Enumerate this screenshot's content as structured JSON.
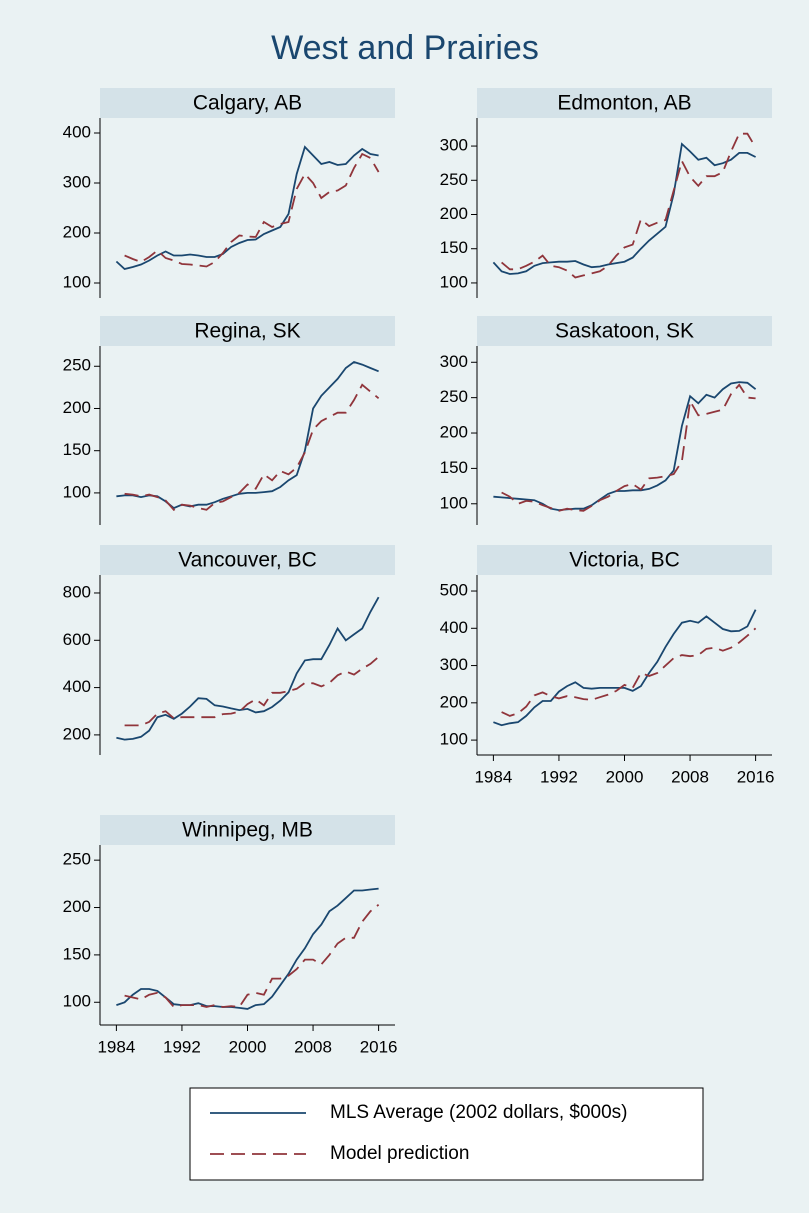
{
  "title": "West and Prairies",
  "chart_data": [
    {
      "type": "line",
      "title": "Calgary, AB",
      "x": [
        1984,
        1985,
        1986,
        1987,
        1988,
        1989,
        1990,
        1991,
        1992,
        1993,
        1994,
        1995,
        1996,
        1997,
        1998,
        1999,
        2000,
        2001,
        2002,
        2003,
        2004,
        2005,
        2006,
        2007,
        2008,
        2009,
        2010,
        2011,
        2012,
        2013,
        2014,
        2015,
        2016
      ],
      "xlim": [
        1982,
        2018
      ],
      "ylim": [
        70,
        430
      ],
      "yticks": [
        100,
        200,
        300,
        400
      ],
      "series": [
        {
          "name": "MLS Average (2002 dollars, $000s)",
          "color": "#1a476f",
          "style": "solid",
          "values": [
            143,
            128,
            132,
            137,
            145,
            155,
            163,
            155,
            155,
            157,
            155,
            152,
            152,
            158,
            172,
            180,
            186,
            187,
            198,
            205,
            212,
            238,
            318,
            372,
            355,
            338,
            342,
            336,
            338,
            355,
            368,
            358,
            355
          ]
        },
        {
          "name": "Model prediction",
          "color": "#90353b",
          "style": "dashed",
          "values": [
            null,
            155,
            148,
            142,
            152,
            165,
            150,
            145,
            138,
            137,
            135,
            133,
            142,
            160,
            182,
            195,
            193,
            192,
            222,
            212,
            218,
            222,
            288,
            318,
            300,
            270,
            282,
            285,
            295,
            330,
            358,
            350,
            322
          ]
        }
      ]
    },
    {
      "type": "line",
      "title": "Edmonton, AB",
      "x": [
        1984,
        1985,
        1986,
        1987,
        1988,
        1989,
        1990,
        1991,
        1992,
        1993,
        1994,
        1995,
        1996,
        1997,
        1998,
        1999,
        2000,
        2001,
        2002,
        2003,
        2004,
        2005,
        2006,
        2007,
        2008,
        2009,
        2010,
        2011,
        2012,
        2013,
        2014,
        2015,
        2016
      ],
      "xlim": [
        1982,
        2018
      ],
      "ylim": [
        78,
        341
      ],
      "yticks": [
        100,
        150,
        200,
        250,
        300
      ],
      "series": [
        {
          "name": "MLS Average (2002 dollars, $000s)",
          "color": "#1a476f",
          "style": "solid",
          "values": [
            130,
            117,
            113,
            114,
            117,
            125,
            129,
            130,
            131,
            131,
            132,
            127,
            123,
            124,
            127,
            129,
            131,
            137,
            150,
            162,
            172,
            182,
            230,
            303,
            292,
            280,
            283,
            272,
            275,
            280,
            290,
            290,
            284
          ]
        },
        {
          "name": "Model prediction",
          "color": "#90353b",
          "style": "dashed",
          "values": [
            null,
            130,
            120,
            120,
            125,
            131,
            140,
            125,
            123,
            118,
            108,
            111,
            114,
            117,
            125,
            140,
            152,
            156,
            193,
            183,
            188,
            192,
            235,
            278,
            255,
            242,
            256,
            256,
            262,
            292,
            318,
            318,
            298
          ]
        }
      ]
    },
    {
      "type": "line",
      "title": "Regina, SK",
      "x": [
        1984,
        1985,
        1986,
        1987,
        1988,
        1989,
        1990,
        1991,
        1992,
        1993,
        1994,
        1995,
        1996,
        1997,
        1998,
        1999,
        2000,
        2001,
        2002,
        2003,
        2004,
        2005,
        2006,
        2007,
        2008,
        2009,
        2010,
        2011,
        2012,
        2013,
        2014,
        2015,
        2016
      ],
      "xlim": [
        1982,
        2018
      ],
      "ylim": [
        62,
        274
      ],
      "yticks": [
        100,
        150,
        200,
        250
      ],
      "series": [
        {
          "name": "MLS Average (2002 dollars, $000s)",
          "color": "#1a476f",
          "style": "solid",
          "values": [
            96,
            97,
            97,
            95,
            97,
            96,
            90,
            82,
            86,
            84,
            86,
            86,
            89,
            93,
            96,
            99,
            100,
            100,
            101,
            102,
            107,
            115,
            121,
            150,
            200,
            215,
            225,
            235,
            248,
            255,
            252,
            248,
            244
          ]
        },
        {
          "name": "Model prediction",
          "color": "#90353b",
          "style": "dashed",
          "values": [
            null,
            99,
            98,
            96,
            98,
            95,
            91,
            80,
            86,
            85,
            82,
            80,
            88,
            90,
            95,
            100,
            110,
            105,
            122,
            115,
            126,
            122,
            130,
            148,
            175,
            185,
            190,
            195,
            195,
            210,
            228,
            220,
            212
          ]
        }
      ]
    },
    {
      "type": "line",
      "title": "Saskatoon, SK",
      "x": [
        1984,
        1985,
        1986,
        1987,
        1988,
        1989,
        1990,
        1991,
        1992,
        1993,
        1994,
        1995,
        1996,
        1997,
        1998,
        1999,
        2000,
        2001,
        2002,
        2003,
        2004,
        2005,
        2006,
        2007,
        2008,
        2009,
        2010,
        2011,
        2012,
        2013,
        2014,
        2015,
        2016
      ],
      "xlim": [
        1982,
        2018
      ],
      "ylim": [
        70,
        323
      ],
      "yticks": [
        100,
        150,
        200,
        250,
        300
      ],
      "series": [
        {
          "name": "MLS Average (2002 dollars, $000s)",
          "color": "#1a476f",
          "style": "solid",
          "values": [
            110,
            109,
            108,
            107,
            106,
            105,
            100,
            93,
            91,
            92,
            93,
            93,
            98,
            106,
            114,
            118,
            118,
            119,
            119,
            121,
            126,
            133,
            147,
            210,
            252,
            242,
            254,
            250,
            262,
            270,
            272,
            271,
            262
          ]
        },
        {
          "name": "Model prediction",
          "color": "#90353b",
          "style": "dashed",
          "values": [
            null,
            116,
            110,
            100,
            104,
            103,
            98,
            94,
            90,
            93,
            91,
            90,
            97,
            105,
            110,
            118,
            125,
            128,
            120,
            136,
            137,
            139,
            142,
            160,
            245,
            225,
            227,
            230,
            233,
            255,
            268,
            250,
            249
          ]
        }
      ]
    },
    {
      "type": "line",
      "title": "Vancouver, BC",
      "x": [
        1984,
        1985,
        1986,
        1987,
        1988,
        1989,
        1990,
        1991,
        1992,
        1993,
        1994,
        1995,
        1996,
        1997,
        1998,
        1999,
        2000,
        2001,
        2002,
        2003,
        2004,
        2005,
        2006,
        2007,
        2008,
        2009,
        2010,
        2011,
        2012,
        2013,
        2014,
        2015,
        2016
      ],
      "xlim": [
        1982,
        2018
      ],
      "ylim": [
        115,
        876
      ],
      "yticks": [
        200,
        400,
        600,
        800
      ],
      "series": [
        {
          "name": "MLS Average (2002 dollars, $000s)",
          "color": "#1a476f",
          "style": "solid",
          "values": [
            188,
            180,
            183,
            192,
            218,
            275,
            285,
            268,
            290,
            320,
            355,
            352,
            325,
            320,
            312,
            305,
            310,
            295,
            300,
            318,
            345,
            380,
            460,
            515,
            520,
            520,
            580,
            650,
            600,
            625,
            650,
            720,
            782
          ]
        },
        {
          "name": "Model prediction",
          "color": "#90353b",
          "style": "dashed",
          "values": [
            null,
            240,
            240,
            240,
            255,
            290,
            300,
            270,
            275,
            275,
            275,
            275,
            275,
            288,
            290,
            298,
            330,
            350,
            325,
            378,
            378,
            385,
            395,
            420,
            418,
            405,
            420,
            452,
            468,
            455,
            480,
            500,
            530
          ]
        }
      ]
    },
    {
      "type": "line",
      "title": "Victoria, BC",
      "x": [
        1984,
        1985,
        1986,
        1987,
        1988,
        1989,
        1990,
        1991,
        1992,
        1993,
        1994,
        1995,
        1996,
        1997,
        1998,
        1999,
        2000,
        2001,
        2002,
        2003,
        2004,
        2005,
        2006,
        2007,
        2008,
        2009,
        2010,
        2011,
        2012,
        2013,
        2014,
        2015,
        2016
      ],
      "xlim": [
        1982,
        2018
      ],
      "xticks": [
        1984,
        1992,
        2000,
        2008,
        2016
      ],
      "ylim": [
        60,
        543
      ],
      "yticks": [
        100,
        200,
        300,
        400,
        500
      ],
      "series": [
        {
          "name": "MLS Average (2002 dollars, $000s)",
          "color": "#1a476f",
          "style": "solid",
          "values": [
            148,
            140,
            145,
            148,
            165,
            188,
            205,
            205,
            230,
            245,
            255,
            240,
            238,
            240,
            240,
            240,
            240,
            232,
            245,
            280,
            310,
            350,
            385,
            415,
            420,
            415,
            432,
            415,
            398,
            392,
            393,
            405,
            450
          ]
        },
        {
          "name": "Model prediction",
          "color": "#90353b",
          "style": "dashed",
          "values": [
            null,
            175,
            165,
            172,
            190,
            220,
            228,
            218,
            212,
            218,
            215,
            210,
            208,
            215,
            222,
            232,
            248,
            240,
            280,
            272,
            280,
            300,
            320,
            328,
            325,
            328,
            345,
            348,
            340,
            348,
            362,
            380,
            400
          ]
        }
      ]
    },
    {
      "type": "line",
      "title": "Winnipeg, MB",
      "x": [
        1984,
        1985,
        1986,
        1987,
        1988,
        1989,
        1990,
        1991,
        1992,
        1993,
        1994,
        1995,
        1996,
        1997,
        1998,
        1999,
        2000,
        2001,
        2002,
        2003,
        2004,
        2005,
        2006,
        2007,
        2008,
        2009,
        2010,
        2011,
        2012,
        2013,
        2014,
        2015,
        2016
      ],
      "xlim": [
        1982,
        2018
      ],
      "xticks": [
        1984,
        1992,
        2000,
        2008,
        2016
      ],
      "ylim": [
        76,
        266
      ],
      "yticks": [
        100,
        150,
        200,
        250
      ],
      "series": [
        {
          "name": "MLS Average (2002 dollars, $000s)",
          "color": "#1a476f",
          "style": "solid",
          "values": [
            97,
            100,
            108,
            114,
            114,
            112,
            105,
            98,
            97,
            97,
            99,
            96,
            96,
            95,
            95,
            94,
            93,
            97,
            98,
            106,
            118,
            130,
            145,
            157,
            172,
            182,
            196,
            202,
            210,
            218,
            218,
            219,
            220
          ]
        },
        {
          "name": "Model prediction",
          "color": "#90353b",
          "style": "dashed",
          "values": [
            null,
            107,
            105,
            103,
            108,
            110,
            105,
            95,
            97,
            97,
            97,
            95,
            97,
            95,
            96,
            95,
            108,
            110,
            108,
            125,
            125,
            128,
            135,
            145,
            145,
            140,
            150,
            162,
            168,
            168,
            185,
            196,
            203
          ]
        }
      ]
    }
  ]
}
